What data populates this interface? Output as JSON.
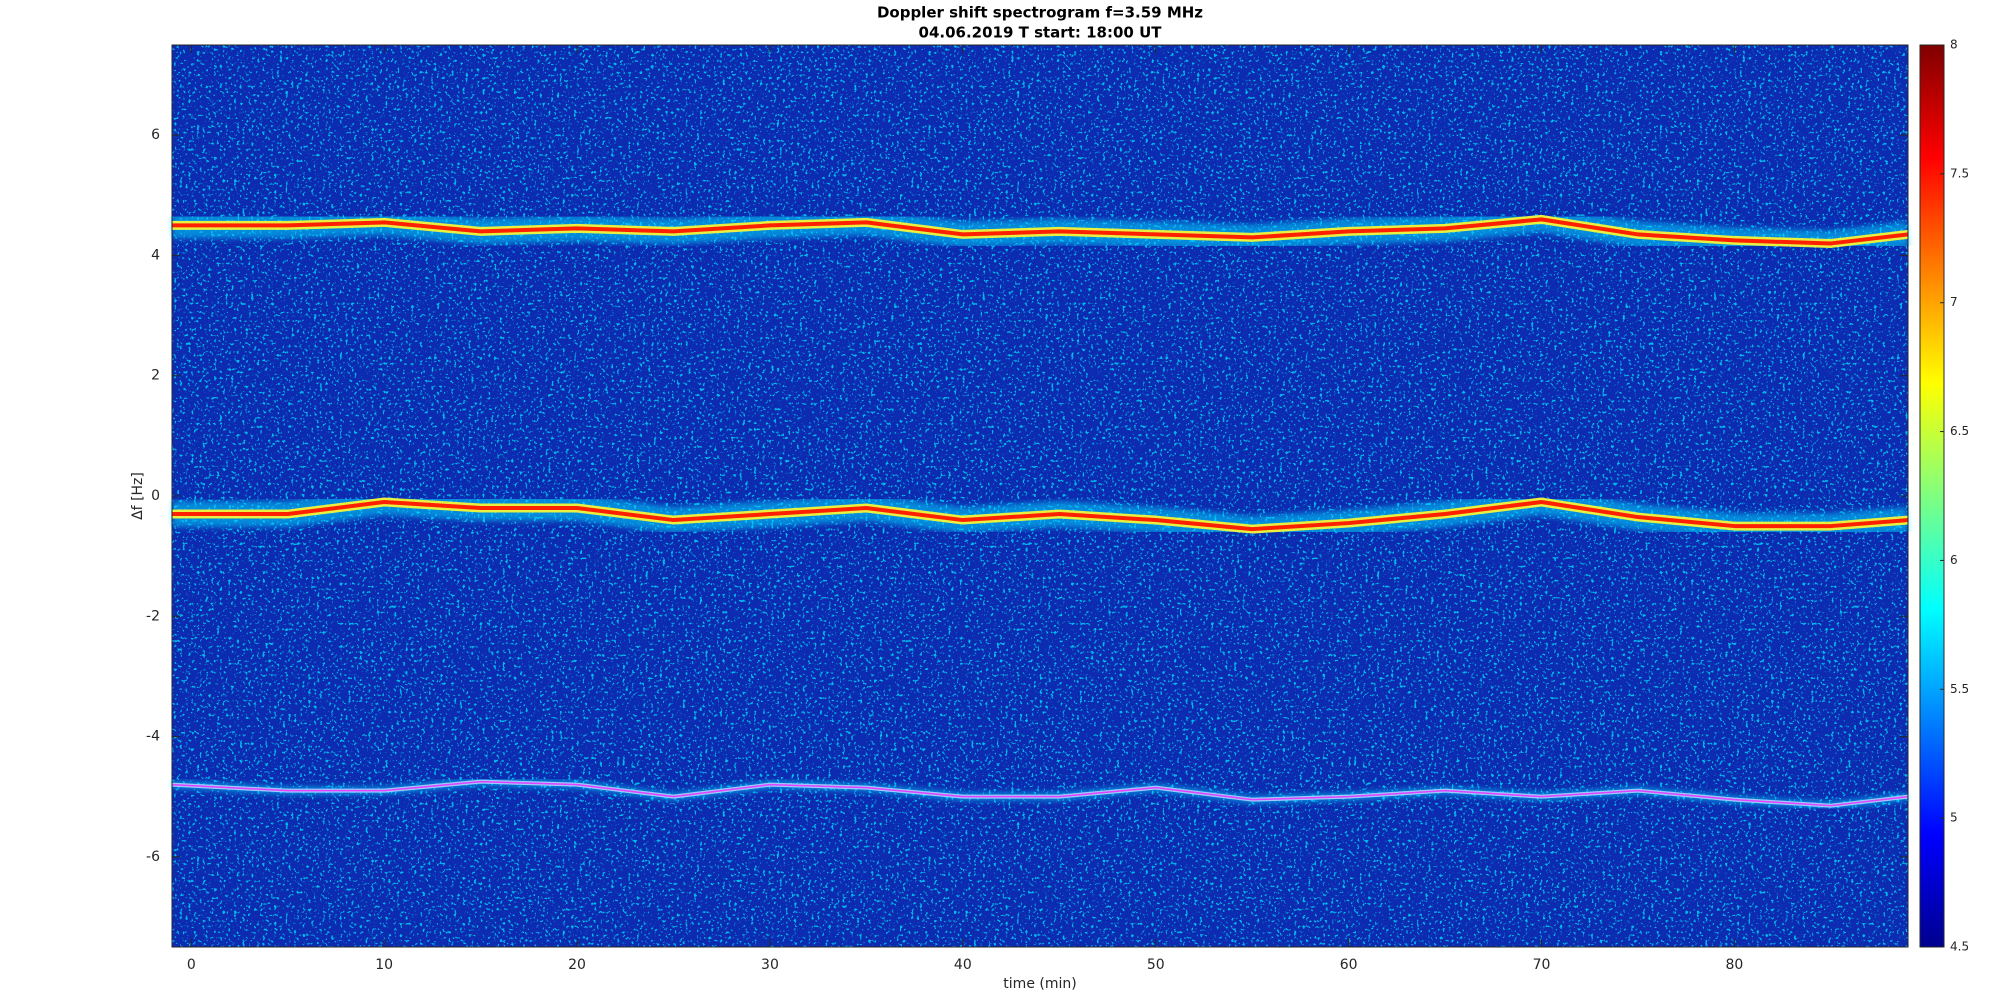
{
  "chart_data": {
    "type": "spectrogram",
    "title": "Doppler shift spectrogram f=3.59 MHz",
    "subtitle": "04.06.2019   T start: 18:00 UT",
    "x_label": "time (min)",
    "y_label": "Δf [Hz]",
    "xlim": [
      -1,
      89
    ],
    "xticks": [
      0,
      10,
      20,
      30,
      40,
      50,
      60,
      70,
      80
    ],
    "ylim": [
      -7.5,
      7.5
    ],
    "yticks": [
      -6,
      -4,
      -2,
      0,
      2,
      4,
      6
    ],
    "colormap": "jet",
    "clim": [
      4.5,
      8
    ],
    "cticks": [
      4.5,
      5,
      5.5,
      6,
      6.5,
      7,
      7.5,
      8
    ],
    "x": [
      -1,
      5,
      10,
      15,
      20,
      25,
      30,
      35,
      40,
      45,
      50,
      55,
      60,
      65,
      70,
      75,
      80,
      85,
      89
    ],
    "series": [
      {
        "color": "#ff2000",
        "values": [
          4.5,
          4.5,
          4.55,
          4.4,
          4.45,
          4.4,
          4.5,
          4.55,
          4.35,
          4.4,
          4.35,
          4.3,
          4.4,
          4.45,
          4.6,
          4.35,
          4.25,
          4.2,
          4.35
        ]
      },
      {
        "color": "#ff2000",
        "values": [
          -0.3,
          -0.3,
          -0.1,
          -0.2,
          -0.2,
          -0.4,
          -0.3,
          -0.2,
          -0.4,
          -0.3,
          -0.4,
          -0.55,
          -0.45,
          -0.3,
          -0.1,
          -0.35,
          -0.5,
          -0.5,
          -0.4
        ]
      },
      {
        "color": "#e040ff",
        "values": [
          -4.8,
          -4.9,
          -4.9,
          -4.75,
          -4.8,
          -5.0,
          -4.8,
          -4.85,
          -5.0,
          -5.0,
          -4.85,
          -5.05,
          -5.0,
          -4.9,
          -5.0,
          -4.9,
          -5.05,
          -5.15,
          -5.0
        ]
      }
    ]
  }
}
